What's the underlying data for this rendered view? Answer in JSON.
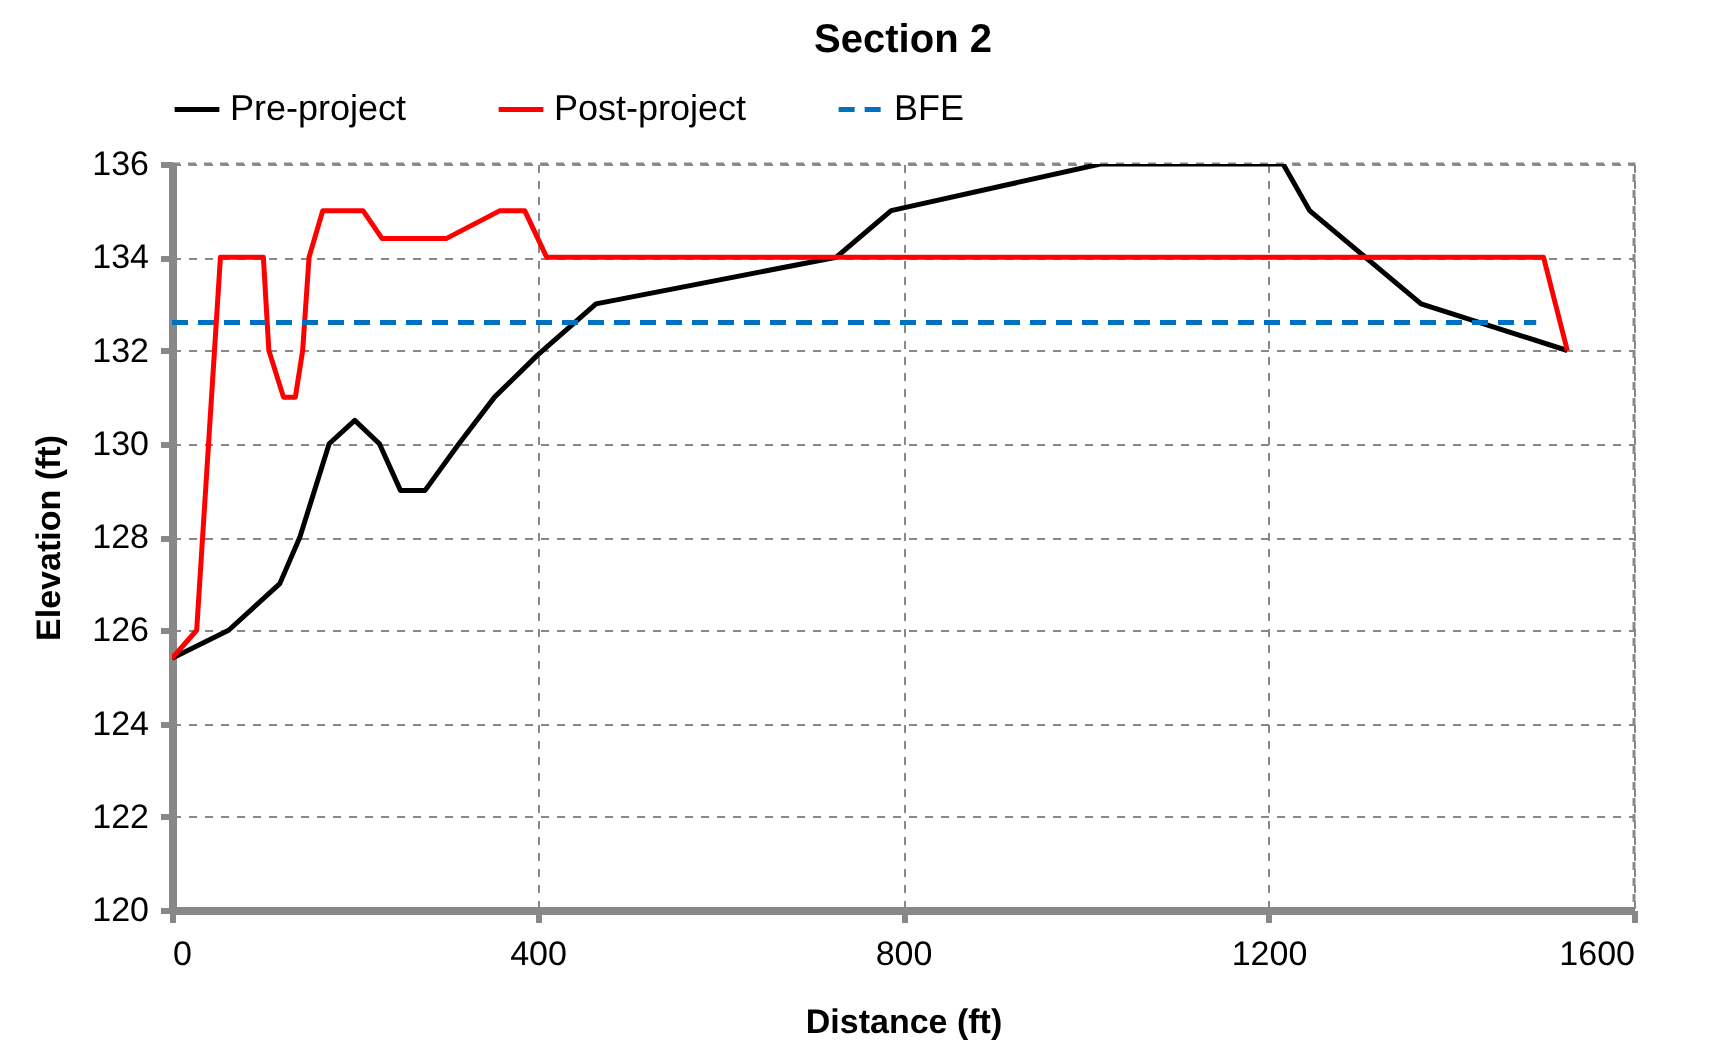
{
  "chart_data": {
    "type": "line",
    "title": "Section 2",
    "xlabel": "Distance (ft)",
    "ylabel": "Elevation (ft)",
    "series": [
      {
        "name": "Pre-project",
        "color": "#000000",
        "line_style": "solid",
        "x": [
          0,
          62,
          118,
          140,
          172,
          200,
          227,
          250,
          277,
          314,
          353,
          400,
          464,
          727,
          787,
          1016,
          1216,
          1245,
          1367,
          1527
        ],
        "values": [
          125.4,
          126.0,
          127.0,
          128.0,
          130.0,
          130.5,
          130.0,
          129.0,
          129.0,
          130.0,
          131.0,
          131.9,
          133.0,
          134.0,
          135.0,
          136.0,
          136.0,
          135.0,
          133.0,
          132.0
        ]
      },
      {
        "name": "Post-project",
        "color": "#ff0000",
        "line_style": "solid",
        "x": [
          0,
          27,
          53,
          100,
          106,
          122,
          135,
          143,
          150,
          165,
          209,
          230,
          300,
          359,
          386,
          410,
          1501,
          1527
        ],
        "values": [
          125.4,
          126.0,
          134.0,
          134.0,
          132.0,
          131.0,
          131.0,
          132.0,
          134.0,
          135.0,
          135.0,
          134.4,
          134.4,
          135.0,
          135.0,
          134.0,
          134.0,
          132.0
        ]
      },
      {
        "name": "BFE",
        "color": "#0070c0",
        "line_style": "dashed",
        "x": [
          0,
          1493
        ],
        "values": [
          132.6,
          132.6
        ]
      }
    ],
    "xlim": [
      0,
      1600
    ],
    "xticks": [
      0,
      400,
      800,
      1200,
      1600
    ],
    "ylim": [
      120,
      136
    ],
    "yticks": [
      120,
      122,
      124,
      126,
      128,
      130,
      132,
      134,
      136
    ],
    "grid": true,
    "legend": "top"
  }
}
